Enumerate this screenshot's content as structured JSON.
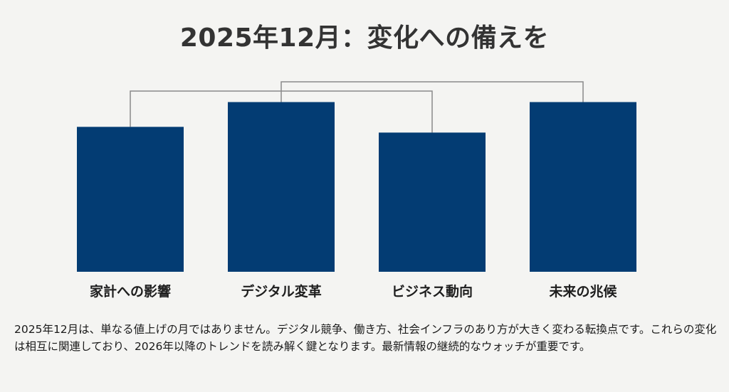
{
  "title": "2025年12月：変化への備えを",
  "description": "2025年12月は、単なる値上げの月ではありません。デジタル競争、働き方、社会インフラのあり方が大きく変わる転換点です。これらの変化は相互に関連しており、2026年以降のトレンドを読み解く鍵となります。最新情報の継続的なウォッチが重要です。",
  "colors": {
    "bar": "#033c73",
    "connector": "#8a8a8a",
    "background": "#f4f4f2"
  },
  "chart_data": {
    "type": "bar",
    "title": "2025年12月：変化への備えを",
    "xlabel": "",
    "ylabel": "",
    "categories": [
      "家計への影響",
      "デジタル変革",
      "ビジネス動向",
      "未来の兆候"
    ],
    "values": [
      76,
      89,
      73,
      89
    ],
    "ylim": [
      0,
      100
    ],
    "grid": false,
    "legend": "none",
    "connectors": [
      {
        "from": "家計への影響",
        "to": "ビジネス動向"
      },
      {
        "from": "デジタル変革",
        "to": "未来の兆候"
      }
    ]
  }
}
